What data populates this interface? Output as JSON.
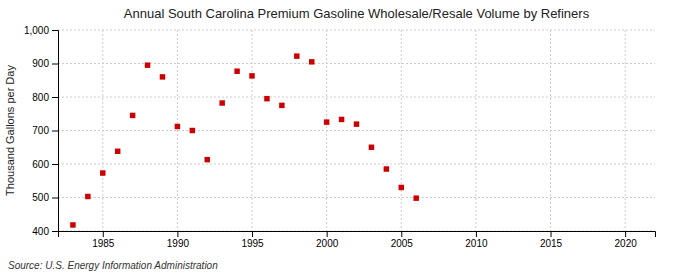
{
  "chart_data": {
    "type": "scatter",
    "title": "Annual South Carolina Premium Gasoline Wholesale/Resale Volume by Refiners",
    "ylabel": "Thousand Gallons per Day",
    "source": "Source: U.S. Energy Information Administration",
    "x": [
      1983,
      1984,
      1985,
      1986,
      1987,
      1988,
      1989,
      1990,
      1991,
      1992,
      1993,
      1994,
      1995,
      1996,
      1997,
      1998,
      1999,
      2000,
      2001,
      2002,
      2003,
      2004,
      2005,
      2006
    ],
    "values": [
      418,
      503,
      573,
      638,
      745,
      895,
      860,
      712,
      700,
      613,
      782,
      877,
      863,
      795,
      775,
      922,
      905,
      725,
      733,
      719,
      650,
      585,
      530,
      498
    ],
    "color": "#cc0000",
    "marker": "square",
    "xlim": [
      1982,
      2022
    ],
    "ylim": [
      400,
      1000
    ],
    "xticks": [
      1985,
      1990,
      1995,
      2000,
      2005,
      2010,
      2015,
      2020
    ],
    "yticks": [
      400,
      500,
      600,
      700,
      800,
      900,
      {
        "value": 1000,
        "label": "1,000"
      }
    ],
    "grid": true
  }
}
